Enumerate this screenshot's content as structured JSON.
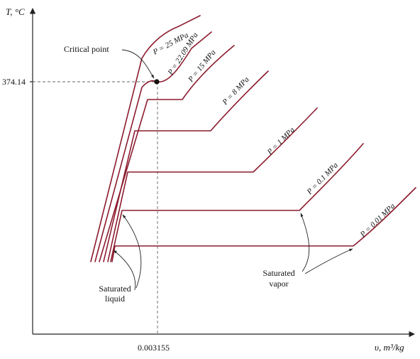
{
  "axes": {
    "y_label": "T, °C",
    "x_label": "υ, m³/kg",
    "y_tick": "374.14",
    "x_tick": "0.003155"
  },
  "annotations": {
    "critical_point": "Critical point",
    "saturated_liquid": [
      "Saturated",
      "liquid"
    ],
    "saturated_vapor": [
      "Saturated",
      "vapor"
    ]
  },
  "isobars": [
    {
      "key": "p25",
      "label": "P = 25 MPa"
    },
    {
      "key": "p2209",
      "label": "P = 22.09 MPa"
    },
    {
      "key": "p15",
      "label": "P = 15 MPa"
    },
    {
      "key": "p8",
      "label": "P = 8 MPa"
    },
    {
      "key": "p1",
      "label": "P = 1 MPa"
    },
    {
      "key": "p01",
      "label": "P = 0.1 MPa"
    },
    {
      "key": "p001",
      "label": "P = 0.01 MPa"
    }
  ],
  "colors": {
    "isobar": "#8b1b2e",
    "axis": "#222222",
    "dashed": "#666666"
  }
}
